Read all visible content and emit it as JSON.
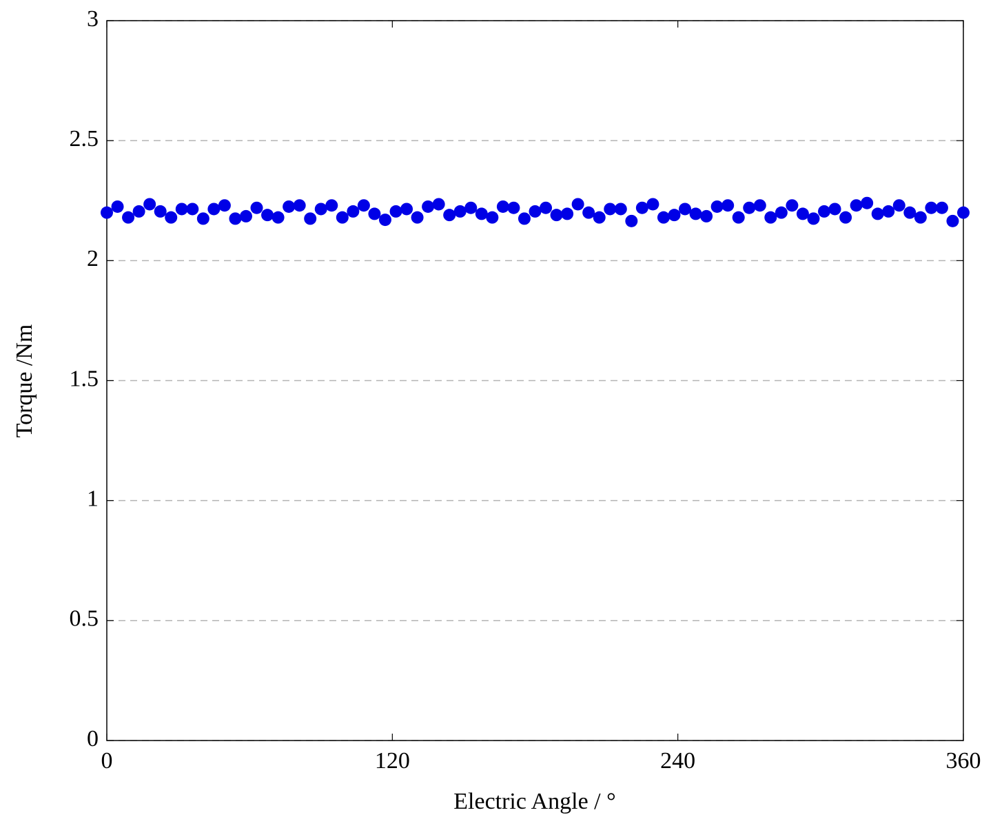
{
  "chart_data": {
    "type": "scatter",
    "xlabel": "Electric Angle / °",
    "ylabel": "Torque /Nm",
    "xlim": [
      0,
      360
    ],
    "xticks": [
      0,
      120,
      240,
      360
    ],
    "ylim": [
      0,
      3
    ],
    "yticks": [
      0,
      0.5,
      1,
      1.5,
      2,
      2.5,
      3
    ],
    "grid": true,
    "series": [
      {
        "color": "#0000e6",
        "x": [
          0,
          4.5,
          9,
          13.5,
          18,
          22.5,
          27,
          31.5,
          36,
          40.5,
          45,
          49.5,
          54,
          58.5,
          63,
          67.5,
          72,
          76.5,
          81,
          85.5,
          90,
          94.5,
          99,
          103.5,
          108,
          112.5,
          117,
          121.5,
          126,
          130.5,
          135,
          139.5,
          144,
          148.5,
          153,
          157.5,
          162,
          166.5,
          171,
          175.5,
          180,
          184.5,
          189,
          193.5,
          198,
          202.5,
          207,
          211.5,
          216,
          220.5,
          225,
          229.5,
          234,
          238.5,
          243,
          247.5,
          252,
          256.5,
          261,
          265.5,
          270,
          274.5,
          279,
          283.5,
          288,
          292.5,
          297,
          301.5,
          306,
          310.5,
          315,
          319.5,
          324,
          328.5,
          333,
          337.5,
          342,
          346.5,
          351,
          355.5,
          360
        ],
        "values": [
          2.2,
          2.225,
          2.18,
          2.205,
          2.235,
          2.205,
          2.18,
          2.215,
          2.215,
          2.175,
          2.215,
          2.23,
          2.175,
          2.185,
          2.22,
          2.19,
          2.18,
          2.225,
          2.23,
          2.175,
          2.215,
          2.23,
          2.18,
          2.205,
          2.23,
          2.195,
          2.17,
          2.205,
          2.215,
          2.18,
          2.225,
          2.235,
          2.19,
          2.205,
          2.22,
          2.195,
          2.18,
          2.225,
          2.22,
          2.175,
          2.205,
          2.22,
          2.19,
          2.195,
          2.235,
          2.2,
          2.18,
          2.215,
          2.215,
          2.165,
          2.22,
          2.235,
          2.18,
          2.19,
          2.215,
          2.195,
          2.185,
          2.225,
          2.23,
          2.18,
          2.22,
          2.23,
          2.18,
          2.2,
          2.23,
          2.195,
          2.175,
          2.205,
          2.215,
          2.18,
          2.23,
          2.24,
          2.195,
          2.205,
          2.23,
          2.2,
          2.18,
          2.22,
          2.22,
          2.165,
          2.2
        ]
      }
    ]
  }
}
